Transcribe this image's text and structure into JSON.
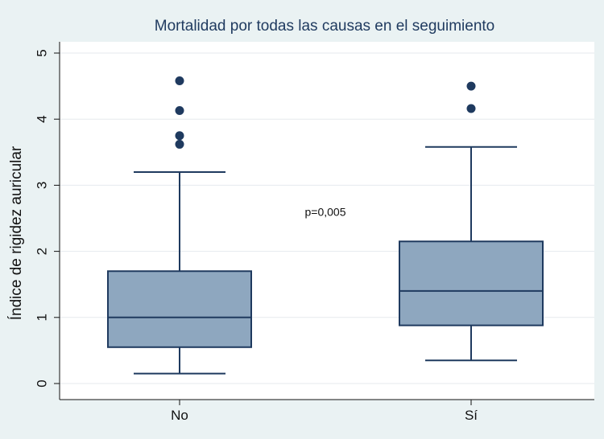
{
  "chart_data": {
    "type": "box",
    "title": "Mortalidad por todas las causas en el seguimiento",
    "xlabel": "",
    "ylabel": "Índice de rigidez auricular",
    "categories": [
      "No",
      "Sí"
    ],
    "ylim": [
      0,
      5
    ],
    "yticks": [
      0,
      1,
      2,
      3,
      4,
      5
    ],
    "grid": true,
    "boxes": [
      {
        "category": "No",
        "whisker_low": 0.15,
        "q1": 0.55,
        "median": 1.0,
        "q3": 1.7,
        "whisker_high": 3.2,
        "outliers": [
          3.62,
          3.75,
          4.13,
          4.58
        ]
      },
      {
        "category": "Sí",
        "whisker_low": 0.35,
        "q1": 0.88,
        "median": 1.4,
        "q3": 2.15,
        "whisker_high": 3.58,
        "outliers": [
          4.16,
          4.5
        ]
      }
    ],
    "annotations": [
      {
        "text": "p=0,005",
        "x": 1.5,
        "y": 2.6
      }
    ],
    "colors": {
      "box_fill": "#8ea7bf",
      "box_stroke": "#1f3a5f",
      "outlier": "#1f3a5f",
      "plot_background": "#ffffff",
      "figure_background": "#eaf2f3",
      "grid": "#e6eaee"
    }
  }
}
